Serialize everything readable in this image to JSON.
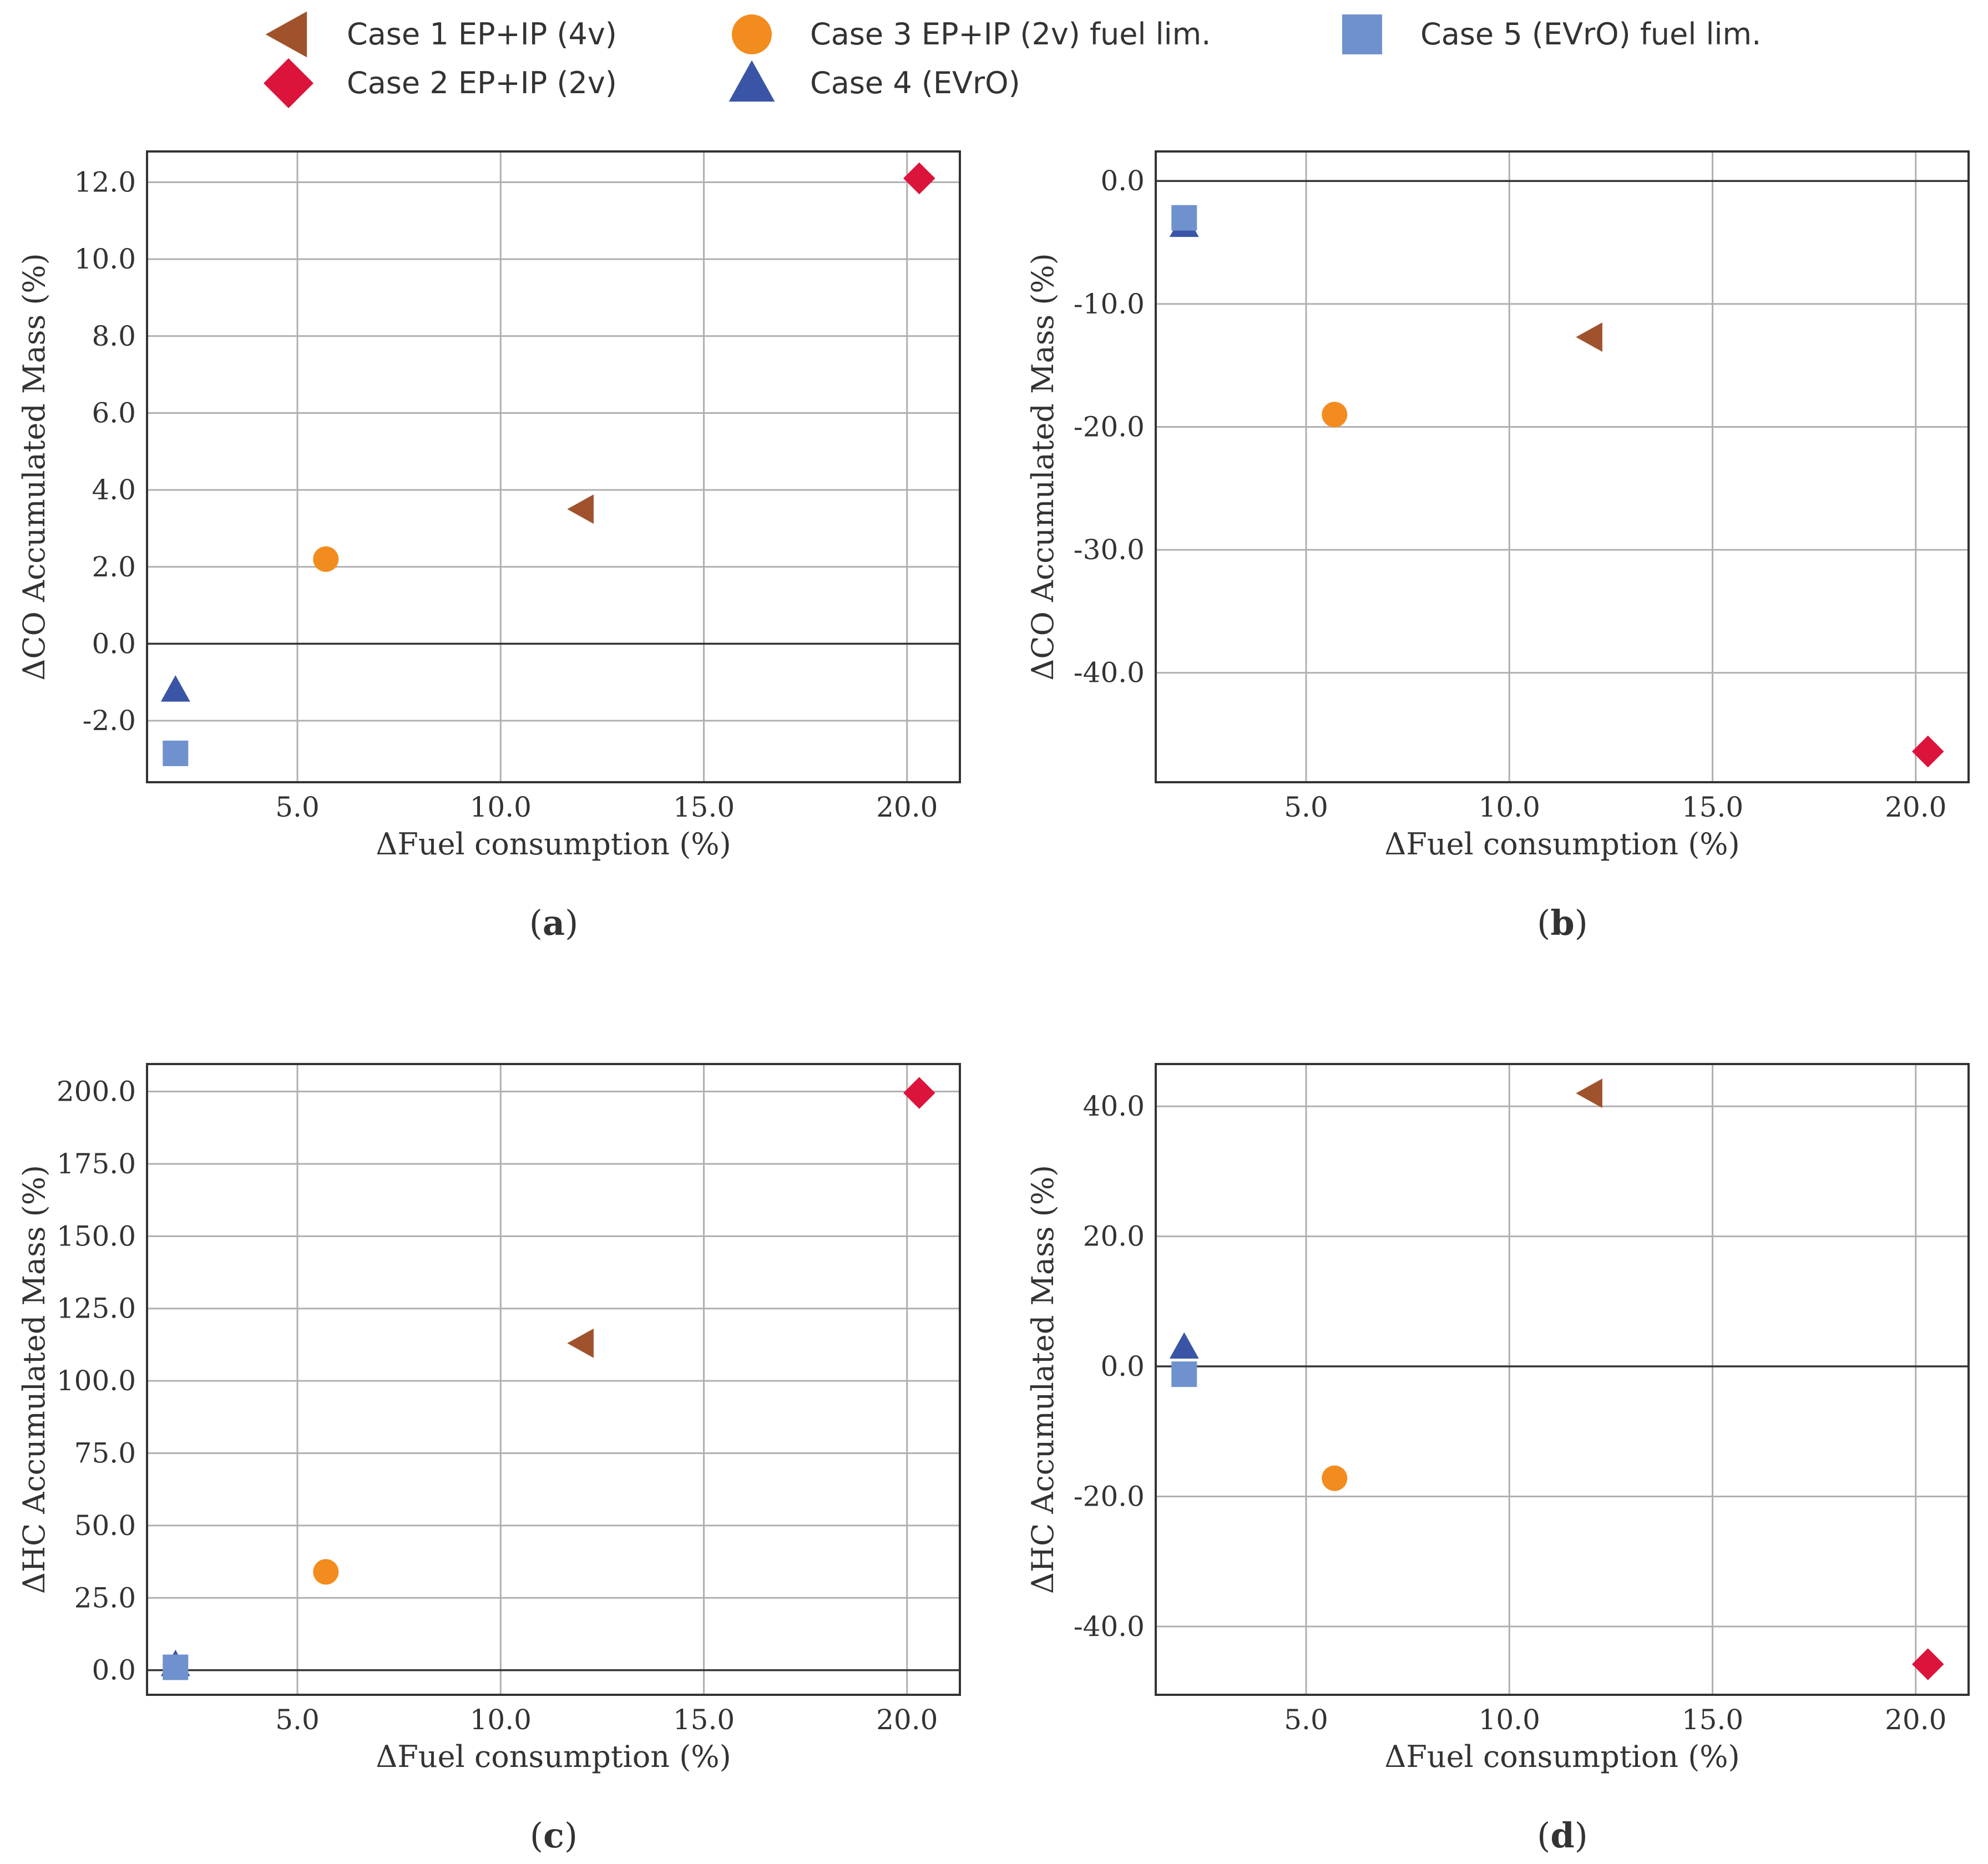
{
  "legend": [
    {
      "id": "case1",
      "label": "Case 1  EP+IP (4v)",
      "marker": "triangle-left",
      "color": "#a0522d"
    },
    {
      "id": "case2",
      "label": "Case 2 EP+IP (2v)",
      "marker": "diamond",
      "color": "#dc143c"
    },
    {
      "id": "case3",
      "label": "Case 3 EP+IP (2v) fuel lim.",
      "marker": "circle",
      "color": "#f28c1e"
    },
    {
      "id": "case4",
      "label": "Case 4 (EVrO)",
      "marker": "triangle-up",
      "color": "#3a55a5"
    },
    {
      "id": "case5",
      "label": "Case 5 (EVrO) fuel lim.",
      "marker": "square",
      "color": "#6f92cf"
    }
  ],
  "chart_data": [
    {
      "type": "scatter",
      "panel": "a",
      "caption_open": "(",
      "caption_letter": "a",
      "caption_close": ")",
      "xlabel": "ΔFuel consumption (%)",
      "ylabel": "ΔCO Accumulated Mass (%)",
      "xlim": [
        1.3,
        21.3
      ],
      "ylim": [
        -3.6,
        12.8
      ],
      "xticks": [
        5,
        10,
        15,
        20
      ],
      "xtick_labels": [
        "5.0",
        "10.0",
        "15.0",
        "20.0"
      ],
      "yticks": [
        -2,
        0,
        2,
        4,
        6,
        8,
        10,
        12
      ],
      "ytick_labels": [
        "-2.0",
        "0.0",
        "2.0",
        "4.0",
        "6.0",
        "8.0",
        "10.0",
        "12.0"
      ],
      "grid": true,
      "series": [
        {
          "case": "case1",
          "x": 12.0,
          "y": 3.5
        },
        {
          "case": "case2",
          "x": 20.3,
          "y": 12.1
        },
        {
          "case": "case3",
          "x": 5.7,
          "y": 2.2
        },
        {
          "case": "case4",
          "x": 2.0,
          "y": -1.2
        },
        {
          "case": "case5",
          "x": 2.0,
          "y": -2.85
        }
      ]
    },
    {
      "type": "scatter",
      "panel": "b",
      "caption_open": "(",
      "caption_letter": "b",
      "caption_close": ")",
      "xlabel": "ΔFuel consumption (%)",
      "ylabel": "ΔCO Accumulated Mass (%)",
      "xlim": [
        1.3,
        21.3
      ],
      "ylim": [
        -48.9,
        2.4
      ],
      "xticks": [
        5,
        10,
        15,
        20
      ],
      "xtick_labels": [
        "5.0",
        "10.0",
        "15.0",
        "20.0"
      ],
      "yticks": [
        -40,
        -30,
        -20,
        -10,
        0
      ],
      "ytick_labels": [
        "-40.0",
        "-30.0",
        "-20.0",
        "-10.0",
        "0.0"
      ],
      "grid": true,
      "series": [
        {
          "case": "case1",
          "x": 12.0,
          "y": -12.7
        },
        {
          "case": "case2",
          "x": 20.3,
          "y": -46.4
        },
        {
          "case": "case3",
          "x": 5.7,
          "y": -19.0
        },
        {
          "case": "case4",
          "x": 2.0,
          "y": -3.6
        },
        {
          "case": "case5",
          "x": 2.0,
          "y": -3.0
        }
      ]
    },
    {
      "type": "scatter",
      "panel": "c",
      "caption_open": "(",
      "caption_letter": "c",
      "caption_close": ")",
      "xlabel": "ΔFuel consumption (%)",
      "ylabel": "ΔHC Accumulated Mass (%)",
      "xlim": [
        1.3,
        21.3
      ],
      "ylim": [
        -8.5,
        209.5
      ],
      "xticks": [
        5,
        10,
        15,
        20
      ],
      "xtick_labels": [
        "5.0",
        "10.0",
        "15.0",
        "20.0"
      ],
      "yticks": [
        0,
        25,
        50,
        75,
        100,
        125,
        150,
        175,
        200
      ],
      "ytick_labels": [
        "0.0",
        "25.0",
        "50.0",
        "75.0",
        "100.0",
        "125.0",
        "150.0",
        "175.0",
        "200.0"
      ],
      "grid": true,
      "series": [
        {
          "case": "case1",
          "x": 12.0,
          "y": 113.0
        },
        {
          "case": "case2",
          "x": 20.3,
          "y": 199.5
        },
        {
          "case": "case3",
          "x": 5.7,
          "y": 34.0
        },
        {
          "case": "case4",
          "x": 2.0,
          "y": 2.0
        },
        {
          "case": "case5",
          "x": 2.0,
          "y": 1.0
        }
      ]
    },
    {
      "type": "scatter",
      "panel": "d",
      "caption_open": "(",
      "caption_letter": "d",
      "caption_close": ")",
      "xlabel": "ΔFuel consumption (%)",
      "ylabel": "ΔHC Accumulated Mass (%)",
      "xlim": [
        1.3,
        21.3
      ],
      "ylim": [
        -50.5,
        46.5
      ],
      "xticks": [
        5,
        10,
        15,
        20
      ],
      "xtick_labels": [
        "5.0",
        "10.0",
        "15.0",
        "20.0"
      ],
      "yticks": [
        -40,
        -20,
        0,
        20,
        40
      ],
      "ytick_labels": [
        "-40.0",
        "-20.0",
        "0.0",
        "20.0",
        "40.0"
      ],
      "grid": true,
      "series": [
        {
          "case": "case1",
          "x": 12.0,
          "y": 42.0
        },
        {
          "case": "case2",
          "x": 20.3,
          "y": -45.8
        },
        {
          "case": "case3",
          "x": 5.7,
          "y": -17.2
        },
        {
          "case": "case4",
          "x": 2.0,
          "y": 3.0
        },
        {
          "case": "case5",
          "x": 2.0,
          "y": -1.2
        }
      ]
    }
  ]
}
